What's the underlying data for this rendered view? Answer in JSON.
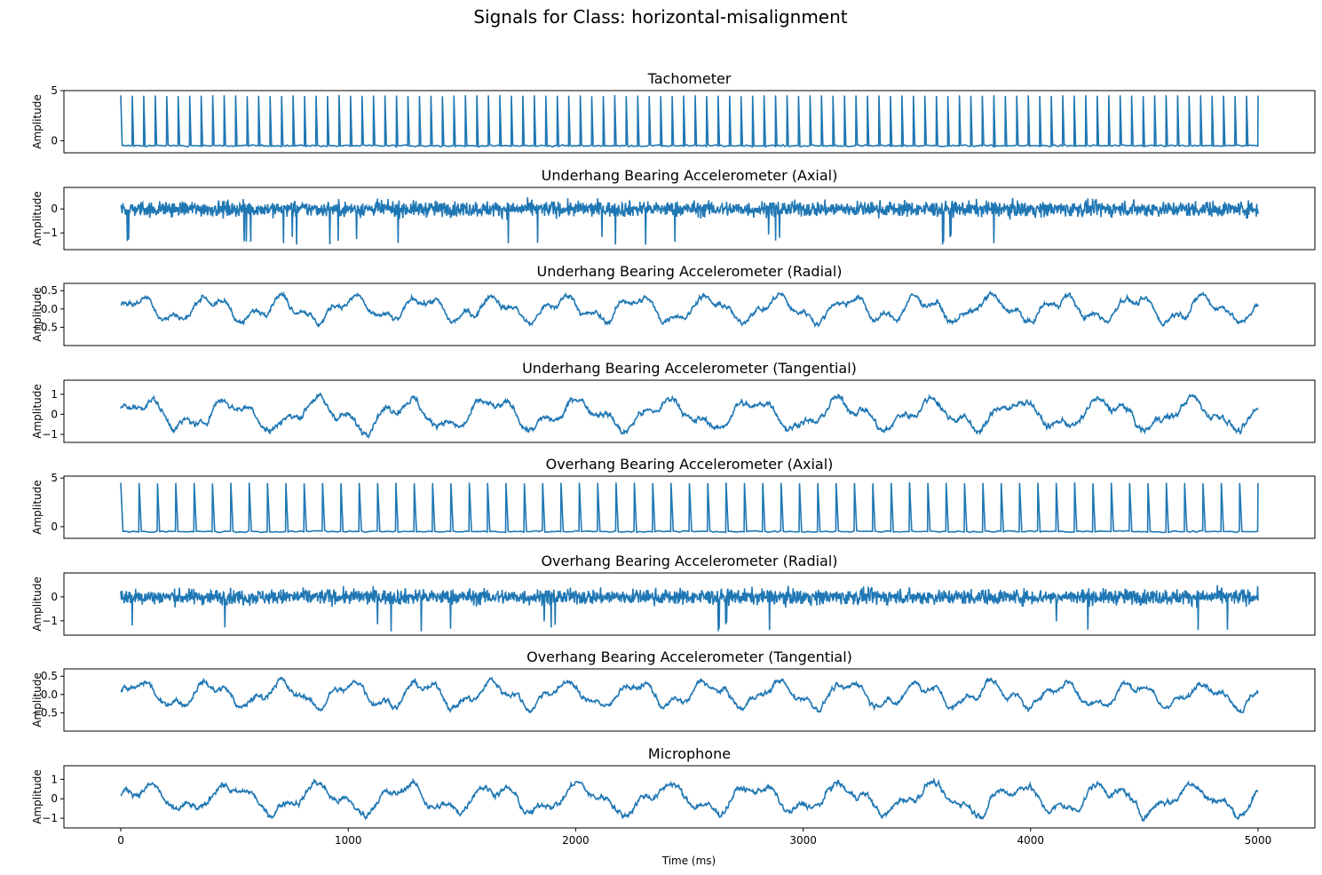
{
  "figure": {
    "suptitle": "Signals for Class: horizontal-misalignment",
    "xlabel": "Time (ms)",
    "ylabel": "Amplitude",
    "line_color": "#1f77b4"
  },
  "chart_data": [
    {
      "type": "line",
      "title": "Tachometer",
      "ylabel": "Amplitude",
      "xlim": [
        -250,
        5250
      ],
      "ylim": [
        -1.2,
        5.0
      ],
      "yticks": [
        0,
        5
      ],
      "ytick_labels": [
        "0",
        "5"
      ],
      "x_range": [
        0,
        5000
      ],
      "signal": {
        "kind": "pulse",
        "baseline": -0.5,
        "peak": 4.5,
        "pulses": 99,
        "noise": 0.15
      }
    },
    {
      "type": "line",
      "title": "Underhang Bearing Accelerometer (Axial)",
      "ylabel": "Amplitude",
      "xlim": [
        -250,
        5250
      ],
      "ylim": [
        -1.7,
        0.9
      ],
      "yticks": [
        -1,
        0
      ],
      "ytick_labels": [
        "−1",
        "0"
      ],
      "x_range": [
        0,
        5000
      ],
      "signal": {
        "kind": "noise",
        "center": 0.0,
        "low": -1.5,
        "high": 0.7
      }
    },
    {
      "type": "line",
      "title": "Underhang Bearing Accelerometer (Radial)",
      "ylabel": "Amplitude",
      "xlim": [
        -250,
        5250
      ],
      "ylim": [
        -1.0,
        0.7
      ],
      "yticks": [
        -0.5,
        0.0,
        0.5
      ],
      "ytick_labels": [
        "−0.5",
        "0.0",
        "0.5"
      ],
      "x_range": [
        0,
        5000
      ],
      "signal": {
        "kind": "wave",
        "center": 0.0,
        "amplitude": 0.28,
        "cycles": 16,
        "low": -0.85,
        "high": 0.6
      }
    },
    {
      "type": "line",
      "title": "Underhang Bearing Accelerometer (Tangential)",
      "ylabel": "Amplitude",
      "xlim": [
        -250,
        5250
      ],
      "ylim": [
        -1.4,
        1.7
      ],
      "yticks": [
        -1,
        0,
        1
      ],
      "ytick_labels": [
        "−1",
        "0",
        "1"
      ],
      "x_range": [
        0,
        5000
      ],
      "signal": {
        "kind": "wave",
        "center": 0.0,
        "amplitude": 0.6,
        "cycles": 13,
        "low": -1.3,
        "high": 1.55
      }
    },
    {
      "type": "line",
      "title": "Overhang Bearing Accelerometer (Axial)",
      "ylabel": "Amplitude",
      "xlim": [
        -250,
        5250
      ],
      "ylim": [
        -1.2,
        5.2
      ],
      "yticks": [
        0,
        5
      ],
      "ytick_labels": [
        "0",
        "5"
      ],
      "x_range": [
        0,
        5000
      ],
      "signal": {
        "kind": "pulse",
        "baseline": -0.5,
        "peak": 4.5,
        "pulses": 62,
        "noise": 0.15
      }
    },
    {
      "type": "line",
      "title": "Overhang Bearing Accelerometer (Radial)",
      "ylabel": "Amplitude",
      "xlim": [
        -250,
        5250
      ],
      "ylim": [
        -1.6,
        1.0
      ],
      "yticks": [
        -1,
        0
      ],
      "ytick_labels": [
        "−1",
        "0"
      ],
      "x_range": [
        0,
        5000
      ],
      "signal": {
        "kind": "noise",
        "center": 0.0,
        "low": -1.45,
        "high": 0.75
      }
    },
    {
      "type": "line",
      "title": "Overhang Bearing Accelerometer (Tangential)",
      "ylabel": "Amplitude",
      "xlim": [
        -250,
        5250
      ],
      "ylim": [
        -1.0,
        0.7
      ],
      "yticks": [
        -0.5,
        0.0,
        0.5
      ],
      "ytick_labels": [
        "−0.5",
        "0.0",
        "0.5"
      ],
      "x_range": [
        0,
        5000
      ],
      "signal": {
        "kind": "wave",
        "center": 0.0,
        "amplitude": 0.28,
        "cycles": 16,
        "low": -0.85,
        "high": 0.6
      }
    },
    {
      "type": "line",
      "title": "Microphone",
      "ylabel": "Amplitude",
      "xlim": [
        -250,
        5250
      ],
      "ylim": [
        -1.5,
        1.7
      ],
      "yticks": [
        -1,
        0,
        1
      ],
      "ytick_labels": [
        "−1",
        "0",
        "1"
      ],
      "xticks": [
        0,
        1000,
        2000,
        3000,
        4000,
        5000
      ],
      "xtick_labels": [
        "0",
        "1000",
        "2000",
        "3000",
        "4000",
        "5000"
      ],
      "x_range": [
        0,
        5000
      ],
      "signal": {
        "kind": "wave",
        "center": 0.0,
        "amplitude": 0.6,
        "cycles": 13,
        "low": -1.3,
        "high": 1.55
      }
    }
  ]
}
